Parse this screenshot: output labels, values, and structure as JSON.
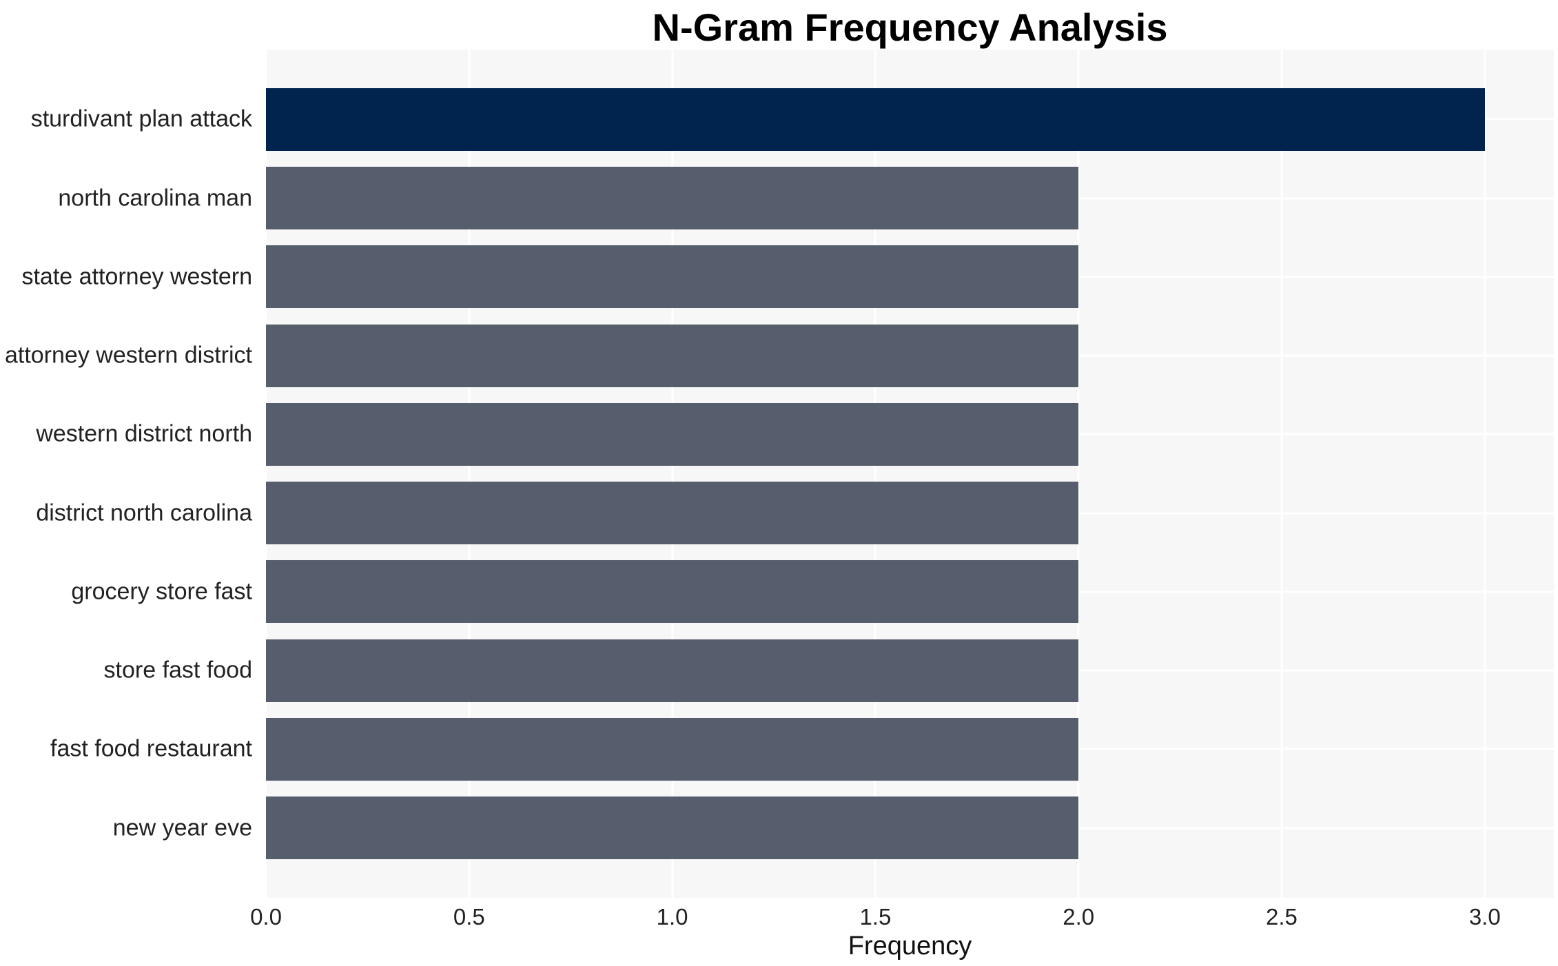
{
  "chart_data": {
    "type": "bar",
    "orientation": "horizontal",
    "title": "N-Gram Frequency Analysis",
    "xlabel": "Frequency",
    "ylabel": "",
    "categories": [
      "sturdivant plan attack",
      "north carolina man",
      "state attorney western",
      "attorney western district",
      "western district north",
      "district north carolina",
      "grocery store fast",
      "store fast food",
      "fast food restaurant",
      "new year eve"
    ],
    "values": [
      3.0,
      2.0,
      2.0,
      2.0,
      2.0,
      2.0,
      2.0,
      2.0,
      2.0,
      2.0
    ],
    "bar_colors": [
      "#01244e",
      "#565d6c",
      "#565d6c",
      "#565d6c",
      "#565d6c",
      "#565d6c",
      "#565d6c",
      "#565d6c",
      "#565d6c",
      "#565d6c"
    ],
    "xticks": [
      "0.0",
      "0.5",
      "1.0",
      "1.5",
      "2.0",
      "2.5",
      "3.0"
    ],
    "xlim": [
      0,
      3.17
    ],
    "grid": true,
    "legend": "none",
    "plot_background": "#f7f7f8",
    "grid_color": "#ffffff",
    "title_color": "#000000",
    "label_color": "#222222"
  }
}
